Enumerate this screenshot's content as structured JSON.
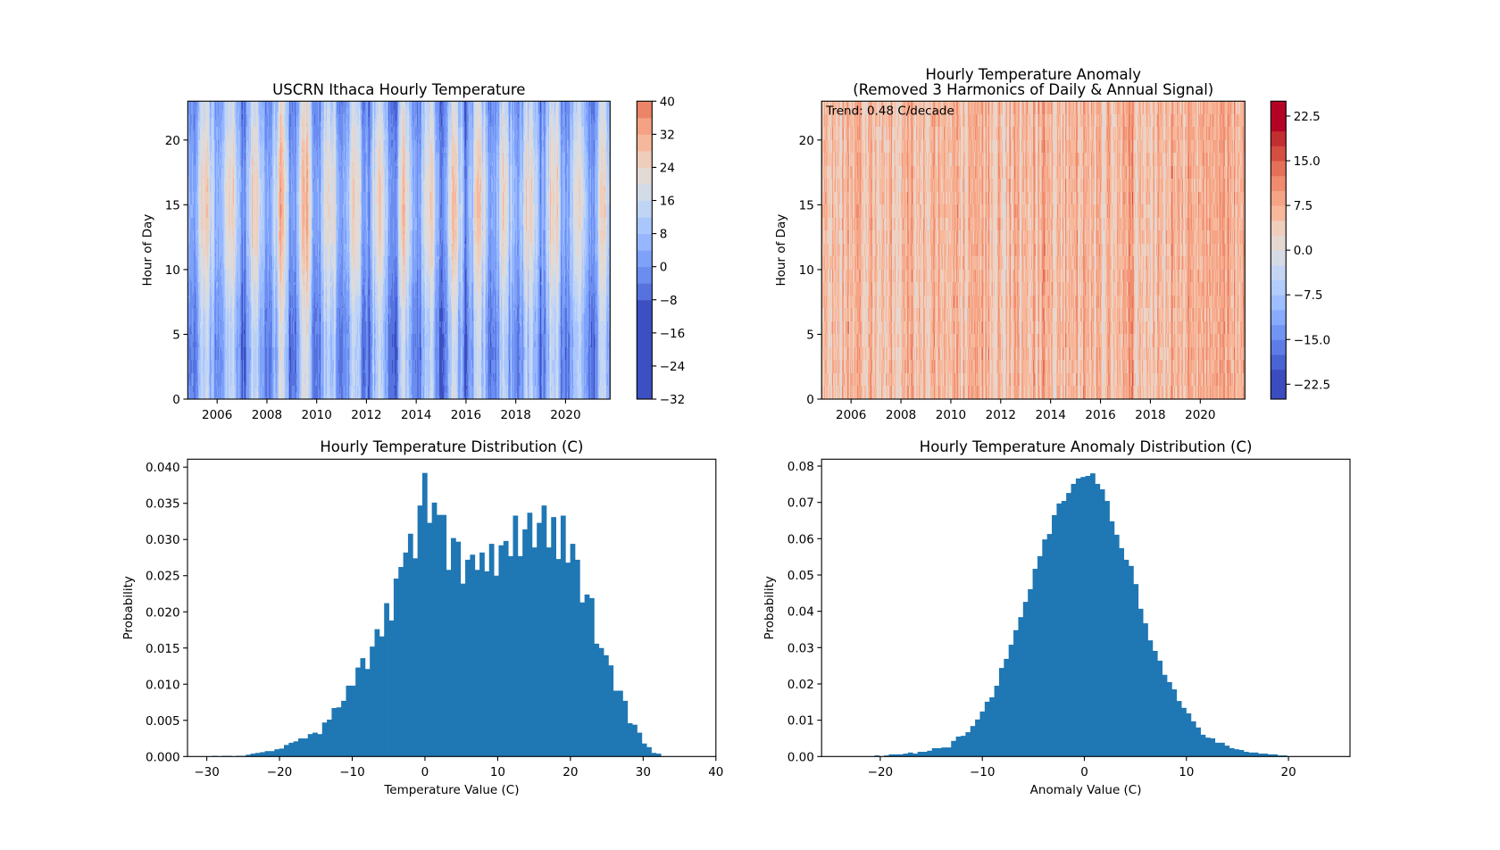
{
  "chart_data": [
    {
      "type": "heatmap",
      "title": "USCRN Ithaca Hourly Temperature",
      "xlabel": "",
      "ylabel": "Hour of Day",
      "xlim": [
        2004.82,
        2021.79
      ],
      "ylim": [
        0,
        23
      ],
      "xticks": [
        2006,
        2008,
        2010,
        2012,
        2014,
        2016,
        2018,
        2020
      ],
      "xtick_labels": [
        "2006",
        "2008",
        "2010",
        "2012",
        "2014",
        "2016",
        "2018",
        "2020"
      ],
      "yticks": [
        0,
        5,
        10,
        15,
        20
      ],
      "ytick_labels": [
        "0",
        "5",
        "10",
        "15",
        "20"
      ],
      "colorbar": {
        "range": [
          -32,
          40
        ],
        "levels": [
          -32,
          -8,
          -4,
          0,
          4,
          8,
          12,
          16,
          20,
          24,
          28,
          32,
          36,
          40
        ],
        "colors": [
          "#3d50c3",
          "#5572df",
          "#6b8df0",
          "#7ea1f9",
          "#96b7ff",
          "#aac7fd",
          "#c0d4f5",
          "#d3dbe7",
          "#e2dad5",
          "#efcdbb",
          "#f6b89c",
          "#f4a283",
          "#ec8467"
        ],
        "ticks": [
          -32,
          -24,
          -16,
          -8,
          0,
          8,
          16,
          24,
          32,
          40
        ],
        "tick_labels": [
          "−32",
          "−24",
          "−16",
          "−8",
          "0",
          "8",
          "16",
          "24",
          "32",
          "40"
        ]
      }
    },
    {
      "type": "heatmap",
      "title": "Hourly Temperature Anomaly",
      "subtitle": "(Removed 3 Harmonics of Daily & Annual Signal)",
      "annotation": "Trend: 0.48 C/decade",
      "xlabel": "",
      "ylabel": "Hour of Day",
      "xlim": [
        2004.82,
        2021.79
      ],
      "ylim": [
        0,
        23
      ],
      "xticks": [
        2006,
        2008,
        2010,
        2012,
        2014,
        2016,
        2018,
        2020
      ],
      "xtick_labels": [
        "2006",
        "2008",
        "2010",
        "2012",
        "2014",
        "2016",
        "2018",
        "2020"
      ],
      "yticks": [
        0,
        5,
        10,
        15,
        20
      ],
      "ytick_labels": [
        "0",
        "5",
        "10",
        "15",
        "20"
      ],
      "colorbar": {
        "range": [
          -25,
          25
        ],
        "levels": [
          -25,
          -20,
          -17.5,
          -15,
          -12.5,
          -10,
          -7.5,
          -5,
          -2.5,
          0,
          2.5,
          5,
          7.5,
          10,
          12.5,
          15,
          17.5,
          20,
          25
        ],
        "colors": [
          "#3b4cc0",
          "#4a63d3",
          "#5d7ce6",
          "#7295f4",
          "#88abfd",
          "#9ebeff",
          "#b2ccfb",
          "#c4d5f3",
          "#d5dbe5",
          "#e5d8d1",
          "#efcebd",
          "#f7b89c",
          "#f5a486",
          "#f08b6e",
          "#e57058",
          "#d44e41",
          "#c32e31",
          "#b40426"
        ],
        "ticks": [
          -22.5,
          -15,
          -7.5,
          0,
          7.5,
          15,
          22.5
        ],
        "tick_labels": [
          "−22.5",
          "−15.0",
          "−7.5",
          "0.0",
          "7.5",
          "15.0",
          "22.5"
        ]
      }
    },
    {
      "type": "bar",
      "subtype": "histogram",
      "title": "Hourly Temperature Distribution (C)",
      "xlabel": "Temperature Value (C)",
      "ylabel": "Probability",
      "color": "#1f77b4",
      "bin_start": -31.2,
      "bin_width": 0.656,
      "values": [
        0,
        0,
        0,
        0.0001,
        0,
        0.0001,
        0.0001,
        0,
        0.0001,
        0.0001,
        0.00025,
        0.0004,
        0.0005,
        0.0006,
        0.00075,
        0.00075,
        0.001,
        0.0011,
        0.0016,
        0.0019,
        0.0021,
        0.0025,
        0.0025,
        0.0031,
        0.0033,
        0.0031,
        0.0047,
        0.0051,
        0.0067,
        0.0068,
        0.0077,
        0.0098,
        0.0098,
        0.0123,
        0.0136,
        0.0121,
        0.0152,
        0.0176,
        0.0166,
        0.0212,
        0.0188,
        0.0246,
        0.0262,
        0.0282,
        0.0308,
        0.0274,
        0.0347,
        0.0392,
        0.0323,
        0.0351,
        0.0334,
        0.0334,
        0.0258,
        0.0302,
        0.0297,
        0.0239,
        0.0272,
        0.0279,
        0.0258,
        0.0282,
        0.0256,
        0.0294,
        0.025,
        0.0292,
        0.0298,
        0.0277,
        0.0333,
        0.0277,
        0.0314,
        0.0337,
        0.0289,
        0.0323,
        0.0347,
        0.0289,
        0.0331,
        0.0273,
        0.0333,
        0.0268,
        0.0294,
        0.0272,
        0.0213,
        0.0224,
        0.0219,
        0.0156,
        0.015,
        0.014,
        0.0126,
        0.0091,
        0.0091,
        0.0077,
        0.0046,
        0.0044,
        0.0033,
        0.0018,
        0.0013,
        0.0005,
        0.0004,
        0,
        0,
        0
      ],
      "xlim": [
        -32.65,
        40
      ],
      "ylim": [
        0,
        0.0411
      ],
      "xticks": [
        -30,
        -20,
        -10,
        0,
        10,
        20,
        30,
        40
      ],
      "xtick_labels": [
        "−30",
        "−20",
        "−10",
        "0",
        "10",
        "20",
        "30",
        "40"
      ],
      "yticks": [
        0,
        0.005,
        0.01,
        0.015,
        0.02,
        0.025,
        0.03,
        0.035,
        0.04
      ],
      "ytick_labels": [
        "0.000",
        "0.005",
        "0.010",
        "0.015",
        "0.020",
        "0.025",
        "0.030",
        "0.035",
        "0.040"
      ]
    },
    {
      "type": "bar",
      "subtype": "histogram",
      "title": "Hourly Temperature Anomaly Distribution (C)",
      "xlabel": "Anomaly Value (C)",
      "ylabel": "Probability",
      "color": "#1f77b4",
      "bin_start": -23.4,
      "bin_width": 0.47,
      "values": [
        0,
        0,
        0,
        0,
        0,
        0,
        0.0003,
        0,
        0.0003,
        0.0006,
        0.0006,
        0.0006,
        0.0008,
        0.0011,
        0.0008,
        0.0013,
        0.0013,
        0.0016,
        0.0023,
        0.0023,
        0.0025,
        0.0025,
        0.0043,
        0.0055,
        0.0057,
        0.0067,
        0.0084,
        0.0102,
        0.0124,
        0.0151,
        0.0163,
        0.0195,
        0.0244,
        0.0269,
        0.0308,
        0.0348,
        0.0384,
        0.0426,
        0.0461,
        0.0517,
        0.0552,
        0.0598,
        0.0613,
        0.0665,
        0.0697,
        0.0704,
        0.0726,
        0.0751,
        0.0766,
        0.077,
        0.0773,
        0.078,
        0.0751,
        0.0736,
        0.0704,
        0.0648,
        0.0611,
        0.0574,
        0.0542,
        0.0525,
        0.0475,
        0.0407,
        0.0367,
        0.032,
        0.0291,
        0.0264,
        0.0225,
        0.0205,
        0.0185,
        0.0153,
        0.0134,
        0.0119,
        0.0097,
        0.008,
        0.006,
        0.0052,
        0.005,
        0.0038,
        0.0038,
        0.003,
        0.0023,
        0.002,
        0.0018,
        0.0013,
        0.0011,
        0.0011,
        0.0008,
        0.0008,
        0.0006,
        0.0006,
        0.0003,
        0.0003,
        0,
        0,
        0,
        0,
        0,
        0,
        0,
        0
      ],
      "xlim": [
        -25.75,
        26.03
      ],
      "ylim": [
        0,
        0.0819
      ],
      "xticks": [
        -20,
        -10,
        0,
        10,
        20
      ],
      "xtick_labels": [
        "−20",
        "−10",
        "0",
        "10",
        "20"
      ],
      "yticks": [
        0,
        0.01,
        0.02,
        0.03,
        0.04,
        0.05,
        0.06,
        0.07,
        0.08
      ],
      "ytick_labels": [
        "0.00",
        "0.01",
        "0.02",
        "0.03",
        "0.04",
        "0.05",
        "0.06",
        "0.07",
        "0.08"
      ]
    }
  ]
}
